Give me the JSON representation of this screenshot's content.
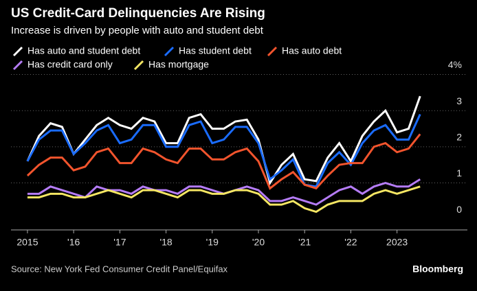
{
  "chart_data": {
    "type": "line",
    "title": "US Credit-Card Delinquencies Are Rising",
    "subtitle": "Increase is driven by people with auto and student debt",
    "source": "Source: New York Fed Consumer Credit Panel/Equifax",
    "brand": "Bloomberg",
    "x": [
      2015,
      2015.25,
      2015.5,
      2015.75,
      2016,
      2016.25,
      2016.5,
      2016.75,
      2017,
      2017.25,
      2017.5,
      2017.75,
      2018,
      2018.25,
      2018.5,
      2018.75,
      2019,
      2019.25,
      2019.5,
      2019.75,
      2020,
      2020.25,
      2020.5,
      2020.75,
      2021,
      2021.25,
      2021.5,
      2021.75,
      2022,
      2022.25,
      2022.5,
      2022.75,
      2023,
      2023.25,
      2023.5
    ],
    "series": [
      {
        "name": "Has auto and student debt",
        "color": "#ffffff",
        "values": [
          1.6,
          2.3,
          2.65,
          2.55,
          1.8,
          2.2,
          2.6,
          2.8,
          2.6,
          2.5,
          2.8,
          2.7,
          2.1,
          2.1,
          2.8,
          2.9,
          2.5,
          2.5,
          2.7,
          2.75,
          2.2,
          1.0,
          1.5,
          1.8,
          1.1,
          1.05,
          1.7,
          2.1,
          1.6,
          2.3,
          2.7,
          3.0,
          2.4,
          2.5,
          3.4
        ]
      },
      {
        "name": "Has student debt",
        "color": "#1a6cff",
        "values": [
          1.6,
          2.2,
          2.45,
          2.45,
          1.8,
          2.1,
          2.45,
          2.6,
          2.1,
          2.2,
          2.6,
          2.6,
          2.0,
          2.0,
          2.6,
          2.7,
          2.1,
          2.2,
          2.55,
          2.55,
          2.1,
          1.1,
          1.35,
          1.65,
          0.95,
          0.9,
          1.55,
          1.85,
          1.5,
          2.1,
          2.45,
          2.6,
          2.2,
          2.2,
          2.9
        ]
      },
      {
        "name": "Has auto debt",
        "color": "#f2542d",
        "values": [
          1.2,
          1.5,
          1.7,
          1.7,
          1.35,
          1.45,
          1.85,
          1.95,
          1.55,
          1.55,
          1.95,
          1.85,
          1.65,
          1.55,
          1.95,
          1.95,
          1.65,
          1.65,
          1.85,
          1.95,
          1.6,
          0.85,
          1.1,
          1.3,
          0.95,
          0.85,
          1.2,
          1.5,
          1.55,
          1.55,
          2.0,
          2.1,
          1.85,
          1.95,
          2.35
        ]
      },
      {
        "name": "Has credit card only",
        "color": "#b57cf7",
        "values": [
          0.7,
          0.7,
          0.9,
          0.8,
          0.7,
          0.6,
          0.9,
          0.8,
          0.8,
          0.7,
          0.9,
          0.8,
          0.8,
          0.7,
          0.9,
          0.9,
          0.8,
          0.7,
          0.8,
          0.9,
          0.8,
          0.5,
          0.5,
          0.6,
          0.5,
          0.4,
          0.6,
          0.8,
          0.9,
          0.7,
          0.9,
          1.0,
          0.9,
          0.9,
          1.1
        ]
      },
      {
        "name": "Has mortgage",
        "color": "#f5e663",
        "values": [
          0.6,
          0.6,
          0.7,
          0.7,
          0.6,
          0.6,
          0.7,
          0.8,
          0.7,
          0.6,
          0.8,
          0.8,
          0.7,
          0.6,
          0.8,
          0.8,
          0.7,
          0.7,
          0.8,
          0.8,
          0.7,
          0.4,
          0.4,
          0.5,
          0.3,
          0.2,
          0.4,
          0.5,
          0.5,
          0.5,
          0.7,
          0.8,
          0.7,
          0.8,
          0.9
        ]
      }
    ],
    "xlim": [
      2014.8,
      2024.3
    ],
    "xticks": [
      {
        "value": 2015,
        "label": "2015"
      },
      {
        "value": 2016,
        "label": "'16"
      },
      {
        "value": 2017,
        "label": "'17"
      },
      {
        "value": 2018,
        "label": "'18"
      },
      {
        "value": 2019,
        "label": "'19"
      },
      {
        "value": 2020,
        "label": "'20"
      },
      {
        "value": 2021,
        "label": "'21"
      },
      {
        "value": 2022,
        "label": "'22"
      },
      {
        "value": 2023,
        "label": "2023"
      }
    ],
    "ylim": [
      -0.3,
      4.2
    ],
    "yticks": [
      0,
      1,
      2,
      3,
      {
        "value": 4,
        "label": "4%"
      }
    ],
    "grid": true
  }
}
